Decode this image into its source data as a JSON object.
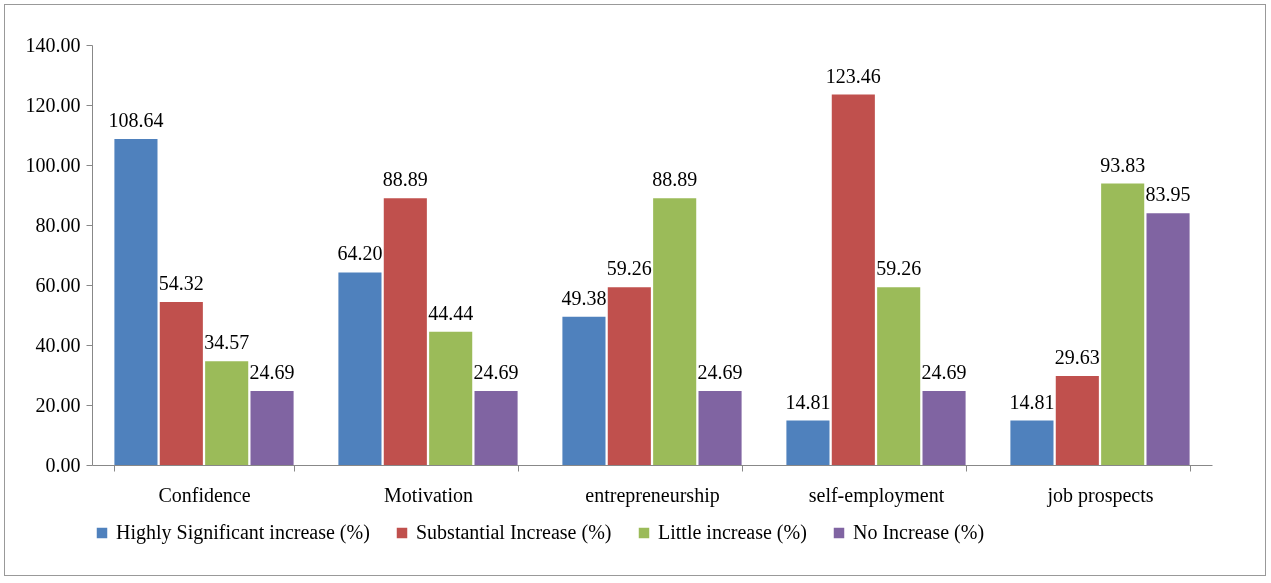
{
  "chart_data": {
    "type": "bar",
    "categories": [
      "Confidence",
      "Motivation",
      "entrepreneurship",
      "self-employment",
      "job prospects"
    ],
    "series": [
      {
        "name": "Highly Significant increase (%)",
        "color": "#4f81bd",
        "values": [
          108.64,
          64.2,
          49.38,
          14.81,
          14.81
        ],
        "value_labels": [
          "108.64",
          "64.20",
          "49.38",
          "14.81",
          "14.81"
        ]
      },
      {
        "name": "Substantial Increase (%)",
        "color": "#c0504d",
        "values": [
          54.32,
          88.89,
          59.26,
          123.46,
          29.63
        ],
        "value_labels": [
          "54.32",
          "88.89",
          "59.26",
          "123.46",
          "29.63"
        ]
      },
      {
        "name": "Little increase (%)",
        "color": "#9bbb59",
        "values": [
          34.57,
          44.44,
          88.89,
          59.26,
          93.83
        ],
        "value_labels": [
          "34.57",
          "44.44",
          "88.89",
          "59.26",
          "93.83"
        ]
      },
      {
        "name": "No Increase (%)",
        "color": "#8064a2",
        "values": [
          24.69,
          24.69,
          24.69,
          24.69,
          83.95
        ],
        "value_labels": [
          "24.69",
          "24.69",
          "24.69",
          "24.69",
          "83.95"
        ]
      }
    ],
    "ylim": [
      0,
      140
    ],
    "yticks": [
      {
        "value": 0,
        "label": "0.00"
      },
      {
        "value": 20,
        "label": "20.00"
      },
      {
        "value": 40,
        "label": "40.00"
      },
      {
        "value": 60,
        "label": "60.00"
      },
      {
        "value": 80,
        "label": "80.00"
      },
      {
        "value": 100,
        "label": "100.00"
      },
      {
        "value": 120,
        "label": "120.00"
      },
      {
        "value": 140,
        "label": "140.00"
      }
    ],
    "legend": "bottom"
  }
}
